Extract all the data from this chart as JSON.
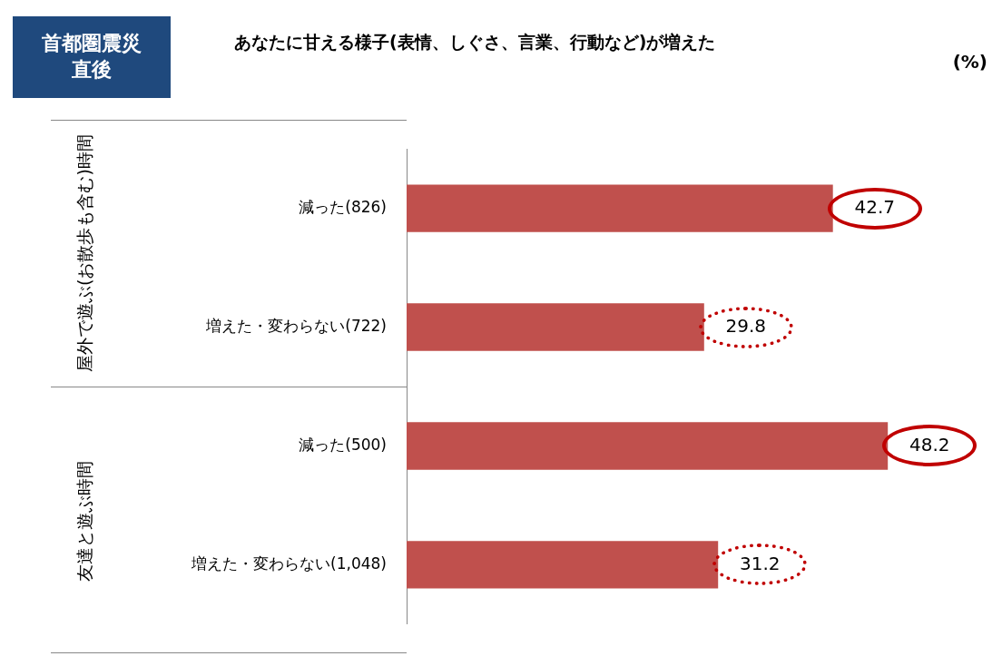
{
  "chart_data": {
    "type": "bar",
    "orientation": "horizontal",
    "title": "あなたに甘える様子(表情、しぐさ、言業、行動など)が増えた",
    "subtitle": "首都圏震災直後",
    "categories": [
      "減った(826)",
      "増えた・変わらない(722)",
      "減った(500)",
      "増えた・変わらない(1,048)"
    ],
    "values": [
      42.7,
      29.8,
      48.2,
      31.2
    ],
    "color": "#c0504d",
    "data_labels": true,
    "grid": false,
    "legend": false,
    "tick_labels": "y",
    "annotations": [
      "(%)",
      "屋外で遊ぶ(お散歩も含む)時間",
      "友達と遊ぶ時間"
    ]
  }
}
